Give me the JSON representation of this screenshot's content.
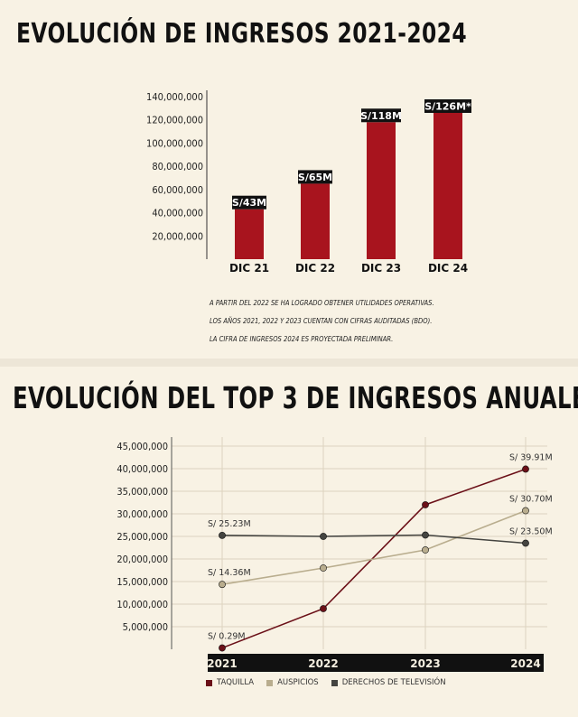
{
  "section1": {
    "title": "EVOLUCIÓN DE INGRESOS 2021-2024",
    "notes": [
      "A PARTIR DEL 2022 SE HA LOGRADO OBTENER UTILIDADES OPERATIVAS.",
      "LOS AÑOS 2021, 2022 Y 2023 CUENTAN CON CIFRAS AUDITADAS (BDO).",
      "LA CIFRA DE INGRESOS 2024 ES PROYECTADA PRELIMINAR."
    ]
  },
  "section2": {
    "title": "EVOLUCIÓN DEL TOP 3 DE INGRESOS ANUALES"
  },
  "chart_data": [
    {
      "type": "bar",
      "title": "EVOLUCIÓN DE INGRESOS 2021-2024",
      "categories": [
        "DIC 21",
        "DIC 22",
        "DIC 23",
        "DIC 24"
      ],
      "values": [
        43000000,
        65000000,
        118000000,
        126000000
      ],
      "data_labels": [
        "S/43M",
        "S/65M",
        "S/118M",
        "S/126M*"
      ],
      "yticks": [
        "20,000,000",
        "40,000,000",
        "60,000,000",
        "80,000,000",
        "100,000,000",
        "120,000,000",
        "140,000,000"
      ],
      "ylim": [
        0,
        140000000
      ],
      "grid": false,
      "color": "#a8141e"
    },
    {
      "type": "line",
      "title": "EVOLUCIÓN DEL TOP 3 DE INGRESOS ANUALES",
      "categories": [
        "2021",
        "2022",
        "2023",
        "2024"
      ],
      "yticks": [
        "5,000,000",
        "10,000,000",
        "15,000,000",
        "20,000,000",
        "25,000,000",
        "30,000,000",
        "35,000,000",
        "40,000,000",
        "45,000,000"
      ],
      "ylim": [
        0,
        45000000
      ],
      "grid": true,
      "legend": "bottom",
      "series": [
        {
          "name": "TAQUILLA",
          "color": "#6b1018",
          "values": [
            290000,
            9000000,
            32000000,
            39910000
          ],
          "point_labels": [
            "S/ 0.29M",
            "",
            "",
            "S/ 39.91M"
          ]
        },
        {
          "name": "AUSPICIOS",
          "color": "#b9ad8e",
          "values": [
            14360000,
            18000000,
            22000000,
            30700000
          ],
          "point_labels": [
            "S/ 14.36M",
            "",
            "",
            "S/ 30.70M"
          ]
        },
        {
          "name": "DERECHOS DE TELEVISIÓN",
          "color": "#444440",
          "values": [
            25230000,
            25000000,
            25300000,
            23500000
          ],
          "point_labels": [
            "S/ 25.23M",
            "",
            "",
            "S/ 23.50M"
          ]
        }
      ]
    }
  ]
}
